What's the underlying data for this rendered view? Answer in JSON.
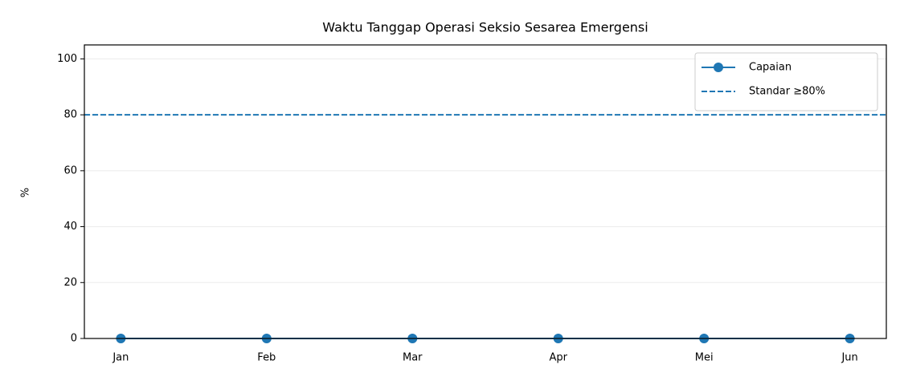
{
  "chart_data": {
    "type": "line",
    "title": "Waktu Tanggap Operasi Seksio Sesarea Emergensi",
    "ylabel": "%",
    "categories": [
      "Jan",
      "Feb",
      "Mar",
      "Apr",
      "Mei",
      "Jun"
    ],
    "series": [
      {
        "name": "Capaian",
        "color": "#1f77b4",
        "values": [
          0,
          0,
          0,
          0,
          0,
          0
        ]
      }
    ],
    "hlines": [
      {
        "name": "Standar ≥80%",
        "value": 80,
        "color": "#1f77b4",
        "style": "dashed"
      }
    ],
    "ylim": [
      0,
      105
    ],
    "yticks": [
      0,
      20,
      40,
      60,
      80,
      100
    ],
    "grid": true,
    "legend": "upper right"
  }
}
